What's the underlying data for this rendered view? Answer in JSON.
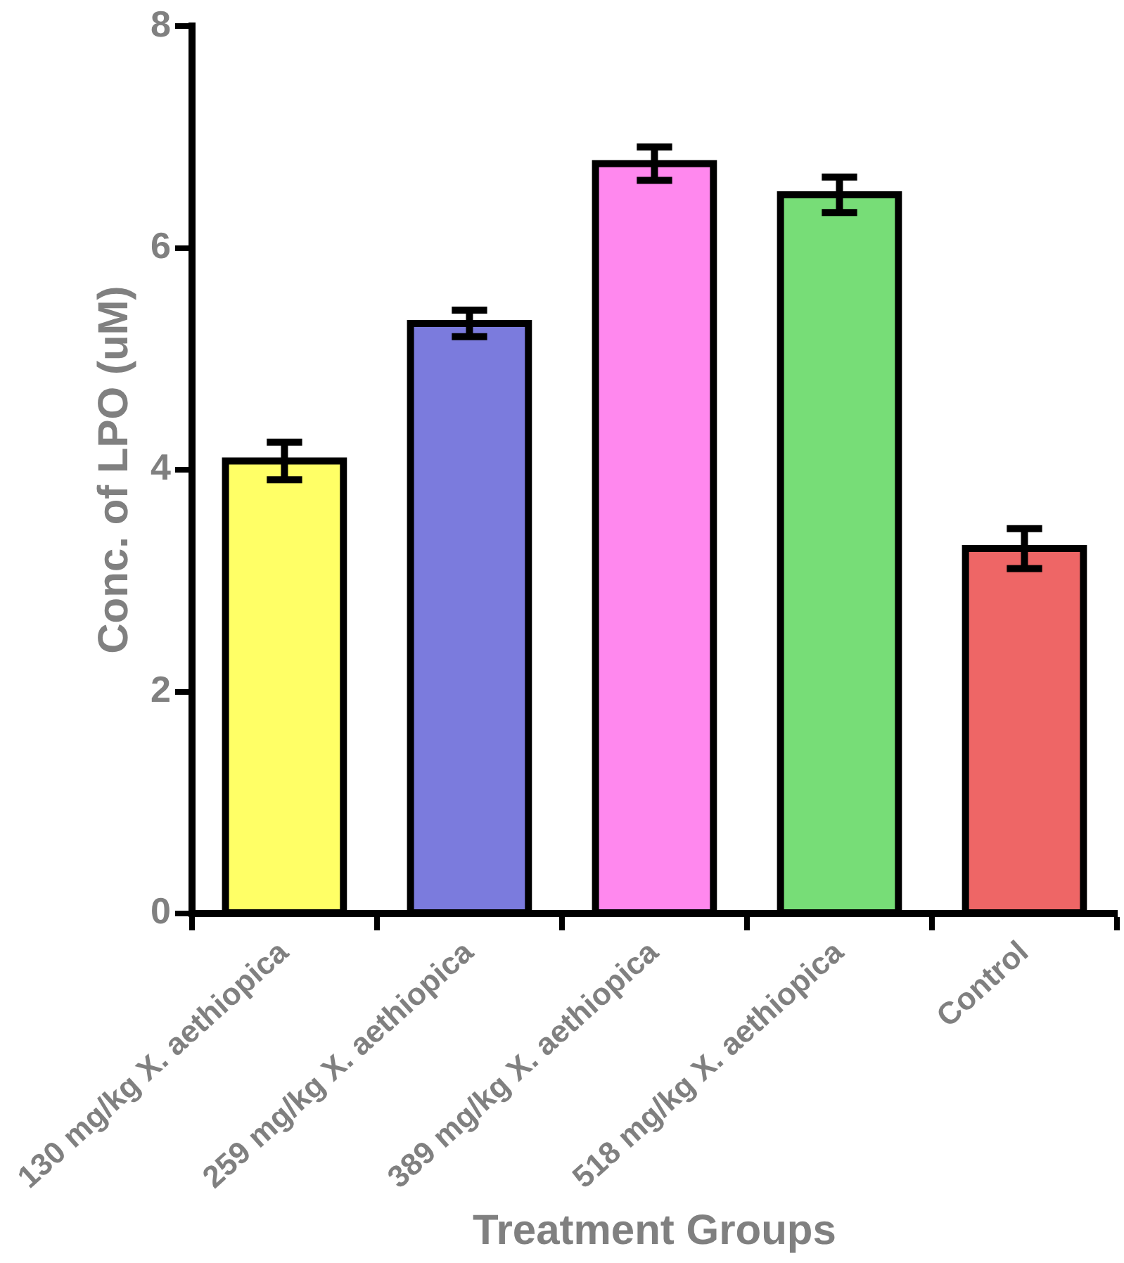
{
  "chart_data": {
    "type": "bar",
    "xlabel": "Treatment Groups",
    "ylabel": "Conc. of LPO (uM)",
    "categories": [
      "130 mg/kg X. aethiopica",
      "259 mg/kg X. aethiopica",
      "389 mg/kg X. aethiopica",
      "518 mg/kg X. aethiopica",
      "Control"
    ],
    "values": [
      4.08,
      5.32,
      6.76,
      6.48,
      3.29
    ],
    "errors": [
      0.17,
      0.12,
      0.15,
      0.16,
      0.18
    ],
    "colors": [
      "#ffff66",
      "#7b7bdd",
      "#ff88ee",
      "#77dd77",
      "#ee6666"
    ],
    "ylim": [
      0,
      8
    ],
    "yticks": [
      0,
      2,
      4,
      6,
      8
    ],
    "grid": false,
    "legend": false
  }
}
